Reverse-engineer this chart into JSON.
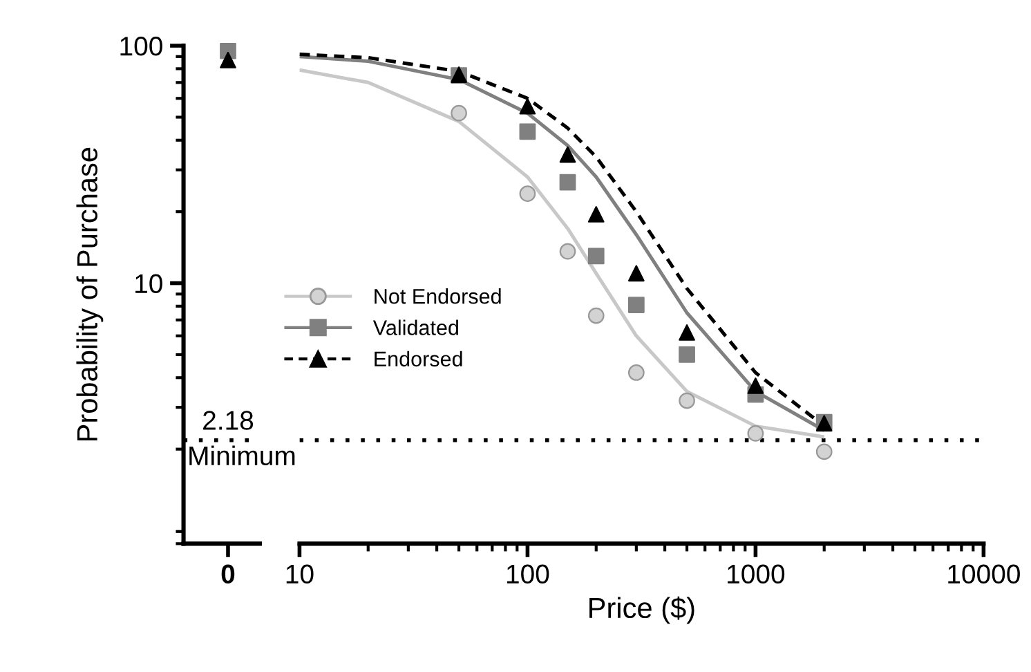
{
  "chart_data": [
    {
      "type": "scatter",
      "ylabel": "Probability of Purchase",
      "categories": [
        "0"
      ],
      "ylim": [
        0.8,
        100
      ],
      "yticks": [
        10,
        100
      ],
      "log": "y",
      "grid": false,
      "legend": false,
      "annotations": [
        {
          "text": "2.18",
          "x": "0",
          "y": 2.18
        }
      ],
      "series": [
        {
          "color": "#d3d3d3",
          "marker": "circle",
          "values": [
            null
          ]
        },
        {
          "color": "#808080",
          "marker": "square",
          "values": [
            95
          ]
        },
        {
          "color": "#000000",
          "marker": "triangle",
          "values": [
            87
          ]
        }
      ],
      "ref_lines": [
        {
          "axis": "y",
          "value": 2.18,
          "label": "Minimum",
          "line_style": "dotted",
          "color": "#000000"
        }
      ]
    },
    {
      "type": "scatter",
      "xlabel": "Price ($)",
      "x": [
        50,
        100,
        150,
        200,
        300,
        500,
        1000,
        2000
      ],
      "xlim": [
        10,
        10000
      ],
      "xticks": [
        10,
        100,
        1000,
        10000
      ],
      "ylim": [
        0.8,
        100
      ],
      "log": "xy",
      "grid": false,
      "legend": "left",
      "tick_labels": "x",
      "series": [
        {
          "name": "Not Endorsed",
          "color": "#d3d3d3",
          "marker": "circle",
          "values": [
            52,
            23.8,
            13.6,
            7.3,
            4.2,
            3.2,
            2.33,
            1.95
          ]
        },
        {
          "name": "Validated",
          "color": "#808080",
          "marker": "square",
          "values": [
            75,
            43.5,
            26.6,
            13,
            8.1,
            5,
            3.4,
            2.6
          ]
        },
        {
          "name": "Endorsed",
          "color": "#000000",
          "marker": "triangle",
          "values": [
            75.5,
            55.6,
            34.8,
            19.5,
            11,
            6.2,
            3.7,
            2.57
          ]
        },
        {
          "type": "line",
          "color": "#c8c8c8",
          "line_style": "solid",
          "x": [
            10,
            20,
            50,
            100,
            150,
            200,
            300,
            500,
            1000,
            2000
          ],
          "values": [
            79,
            70,
            48,
            28,
            17,
            11,
            6,
            3.5,
            2.5,
            2.25
          ]
        },
        {
          "type": "line",
          "color": "#808080",
          "line_style": "solid",
          "x": [
            10,
            20,
            50,
            100,
            150,
            200,
            300,
            500,
            1000,
            2000
          ],
          "values": [
            90,
            86,
            72,
            52,
            38,
            28,
            16,
            7.5,
            3.5,
            2.4
          ]
        },
        {
          "type": "line",
          "color": "#000000",
          "line_style": "dashed",
          "x": [
            10,
            20,
            50,
            100,
            150,
            200,
            300,
            500,
            1000,
            2000
          ],
          "values": [
            92,
            89,
            78,
            60,
            45,
            34,
            20,
            9.5,
            4.2,
            2.5
          ]
        }
      ],
      "ref_lines": [
        {
          "axis": "y",
          "value": 2.18,
          "line_style": "dotted",
          "color": "#000000"
        }
      ]
    }
  ]
}
